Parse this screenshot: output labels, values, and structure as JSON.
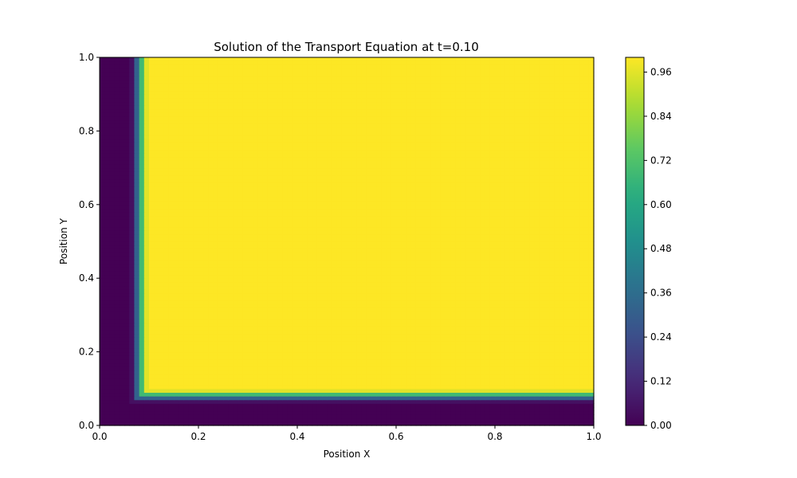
{
  "chart_data": {
    "type": "heatmap",
    "title": "Solution of the Transport Equation at t=0.10",
    "xlabel": "Position X",
    "ylabel": "Position Y",
    "xlim": [
      0,
      1
    ],
    "ylim": [
      0,
      1
    ],
    "x_ticks": [
      "0.0",
      "0.2",
      "0.4",
      "0.6",
      "0.8",
      "1.0"
    ],
    "y_ticks": [
      "0.0",
      "0.2",
      "0.4",
      "0.6",
      "0.8",
      "1.0"
    ],
    "colormap": "viridis",
    "colorbar": {
      "range": [
        0,
        1.0
      ],
      "ticks": [
        "0.00",
        "0.12",
        "0.24",
        "0.36",
        "0.48",
        "0.60",
        "0.72",
        "0.84",
        "0.96"
      ]
    },
    "field": {
      "description_values": "u(x,y) ≈ 0 for x < 0.06 or y < 0.06; smooth rise to ≈1 across 0.06–0.10 in both x and y; ≈1 elsewhere",
      "low_value": 0.0,
      "high_value": 1.0,
      "front_start": 0.06,
      "front_end": 0.1
    },
    "grid": false
  }
}
